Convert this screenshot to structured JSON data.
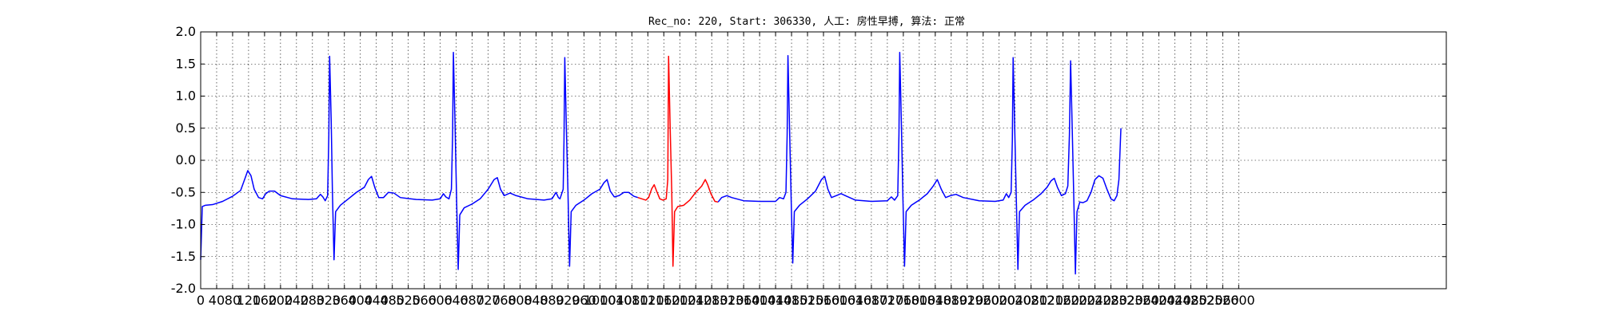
{
  "chart_data": {
    "type": "line",
    "title": "Rec_no: 220, Start: 306330, 人工: 房性早搏, 算法: 正常",
    "xlabel": "",
    "ylabel": "",
    "xlim": [
      0,
      3120
    ],
    "ylim": [
      -2.0,
      2.0
    ],
    "grid": true,
    "yticks": [
      "-2.0",
      "-1.5",
      "-1.0",
      "-0.5",
      "0.0",
      "0.5",
      "1.0",
      "1.5",
      "2.0"
    ],
    "xticks": [
      "0",
      "40",
      "80",
      "120",
      "160",
      "200",
      "240",
      "280",
      "320",
      "360",
      "400",
      "440",
      "480",
      "520",
      "560",
      "600",
      "640",
      "680",
      "720",
      "760",
      "800",
      "840",
      "880",
      "920",
      "960",
      "1000",
      "1040",
      "1080",
      "1120",
      "1160",
      "1200",
      "1240",
      "1280",
      "1320",
      "1360",
      "1400",
      "1440",
      "1480",
      "1520",
      "1560",
      "1600",
      "1640",
      "1680",
      "1720",
      "1760",
      "1800",
      "1840",
      "1880",
      "1920",
      "1960",
      "2000",
      "2040",
      "2080",
      "2120",
      "2160",
      "2200",
      "2240",
      "2280",
      "2320",
      "2360",
      "2400",
      "2440",
      "2480",
      "2520",
      "2560",
      "2600"
    ],
    "series": [
      {
        "color": "#0000ff",
        "points": [
          [
            0,
            -1.55
          ],
          [
            4,
            -0.72
          ],
          [
            12,
            -0.7
          ],
          [
            30,
            -0.69
          ],
          [
            55,
            -0.64
          ],
          [
            80,
            -0.56
          ],
          [
            100,
            -0.47
          ],
          [
            110,
            -0.3
          ],
          [
            118,
            -0.16
          ],
          [
            126,
            -0.24
          ],
          [
            134,
            -0.45
          ],
          [
            145,
            -0.58
          ],
          [
            155,
            -0.6
          ],
          [
            163,
            -0.52
          ],
          [
            172,
            -0.48
          ],
          [
            185,
            -0.48
          ],
          [
            200,
            -0.55
          ],
          [
            230,
            -0.6
          ],
          [
            270,
            -0.61
          ],
          [
            290,
            -0.6
          ],
          [
            300,
            -0.53
          ],
          [
            306,
            -0.57
          ],
          [
            312,
            -0.63
          ],
          [
            318,
            -0.55
          ],
          [
            321,
            0.4
          ],
          [
            323,
            1.62
          ],
          [
            327,
            0.6
          ],
          [
            330,
            -0.5
          ],
          [
            334,
            -1.55
          ],
          [
            338,
            -0.8
          ],
          [
            350,
            -0.7
          ],
          [
            370,
            -0.6
          ],
          [
            390,
            -0.5
          ],
          [
            410,
            -0.42
          ],
          [
            420,
            -0.3
          ],
          [
            428,
            -0.25
          ],
          [
            436,
            -0.42
          ],
          [
            446,
            -0.58
          ],
          [
            458,
            -0.58
          ],
          [
            470,
            -0.5
          ],
          [
            484,
            -0.51
          ],
          [
            500,
            -0.58
          ],
          [
            540,
            -0.61
          ],
          [
            580,
            -0.62
          ],
          [
            600,
            -0.6
          ],
          [
            608,
            -0.52
          ],
          [
            614,
            -0.57
          ],
          [
            622,
            -0.6
          ],
          [
            628,
            -0.45
          ],
          [
            631,
            0.4
          ],
          [
            633,
            1.68
          ],
          [
            637,
            0.6
          ],
          [
            641,
            -0.6
          ],
          [
            645,
            -1.7
          ],
          [
            649,
            -0.85
          ],
          [
            660,
            -0.74
          ],
          [
            680,
            -0.68
          ],
          [
            700,
            -0.6
          ],
          [
            720,
            -0.45
          ],
          [
            735,
            -0.3
          ],
          [
            743,
            -0.27
          ],
          [
            751,
            -0.45
          ],
          [
            760,
            -0.55
          ],
          [
            775,
            -0.51
          ],
          [
            790,
            -0.55
          ],
          [
            820,
            -0.6
          ],
          [
            860,
            -0.62
          ],
          [
            880,
            -0.6
          ],
          [
            890,
            -0.5
          ],
          [
            896,
            -0.58
          ],
          [
            900,
            -0.6
          ],
          [
            908,
            -0.45
          ],
          [
            910,
            0.3
          ],
          [
            912,
            1.6
          ],
          [
            916,
            0.5
          ],
          [
            920,
            -0.5
          ],
          [
            924,
            -1.65
          ],
          [
            928,
            -0.8
          ],
          [
            940,
            -0.7
          ],
          [
            960,
            -0.62
          ],
          [
            980,
            -0.52
          ],
          [
            1000,
            -0.45
          ],
          [
            1010,
            -0.35
          ],
          [
            1018,
            -0.3
          ],
          [
            1026,
            -0.48
          ],
          [
            1036,
            -0.57
          ],
          [
            1048,
            -0.55
          ],
          [
            1060,
            -0.5
          ],
          [
            1072,
            -0.5
          ],
          [
            1085,
            -0.56
          ],
          [
            1095,
            -0.58
          ]
        ]
      },
      {
        "color": "#ff0000",
        "points": [
          [
            1095,
            -0.58
          ],
          [
            1105,
            -0.6
          ],
          [
            1115,
            -0.62
          ],
          [
            1122,
            -0.58
          ],
          [
            1130,
            -0.44
          ],
          [
            1136,
            -0.38
          ],
          [
            1142,
            -0.48
          ],
          [
            1150,
            -0.6
          ],
          [
            1158,
            -0.62
          ],
          [
            1166,
            -0.6
          ],
          [
            1170,
            -0.3
          ],
          [
            1172,
            1.62
          ],
          [
            1176,
            0.5
          ],
          [
            1180,
            -0.5
          ],
          [
            1183,
            -1.65
          ],
          [
            1187,
            -0.8
          ],
          [
            1195,
            -0.72
          ],
          [
            1210,
            -0.7
          ],
          [
            1225,
            -0.62
          ],
          [
            1240,
            -0.5
          ],
          [
            1255,
            -0.4
          ],
          [
            1264,
            -0.3
          ],
          [
            1270,
            -0.38
          ],
          [
            1278,
            -0.52
          ],
          [
            1288,
            -0.64
          ],
          [
            1296,
            -0.65
          ]
        ]
      },
      {
        "color": "#0000ff",
        "points": [
          [
            1296,
            -0.65
          ],
          [
            1305,
            -0.58
          ],
          [
            1318,
            -0.55
          ],
          [
            1330,
            -0.58
          ],
          [
            1360,
            -0.63
          ],
          [
            1400,
            -0.64
          ],
          [
            1440,
            -0.64
          ],
          [
            1450,
            -0.58
          ],
          [
            1460,
            -0.6
          ],
          [
            1466,
            -0.5
          ],
          [
            1469,
            0.4
          ],
          [
            1471,
            1.63
          ],
          [
            1475,
            0.5
          ],
          [
            1479,
            -0.6
          ],
          [
            1483,
            -1.6
          ],
          [
            1487,
            -0.8
          ],
          [
            1500,
            -0.7
          ],
          [
            1520,
            -0.6
          ],
          [
            1540,
            -0.48
          ],
          [
            1555,
            -0.3
          ],
          [
            1563,
            -0.25
          ],
          [
            1571,
            -0.45
          ],
          [
            1580,
            -0.58
          ],
          [
            1592,
            -0.55
          ],
          [
            1604,
            -0.52
          ],
          [
            1618,
            -0.56
          ],
          [
            1640,
            -0.62
          ],
          [
            1680,
            -0.64
          ],
          [
            1720,
            -0.63
          ],
          [
            1730,
            -0.57
          ],
          [
            1738,
            -0.62
          ],
          [
            1746,
            -0.55
          ],
          [
            1749,
            0.4
          ],
          [
            1751,
            1.68
          ],
          [
            1755,
            0.6
          ],
          [
            1759,
            -0.6
          ],
          [
            1763,
            -1.65
          ],
          [
            1767,
            -0.8
          ],
          [
            1780,
            -0.7
          ],
          [
            1800,
            -0.62
          ],
          [
            1820,
            -0.52
          ],
          [
            1835,
            -0.4
          ],
          [
            1845,
            -0.3
          ],
          [
            1855,
            -0.45
          ],
          [
            1866,
            -0.58
          ],
          [
            1878,
            -0.55
          ],
          [
            1892,
            -0.53
          ],
          [
            1910,
            -0.58
          ],
          [
            1950,
            -0.63
          ],
          [
            1990,
            -0.64
          ],
          [
            2010,
            -0.62
          ],
          [
            2018,
            -0.52
          ],
          [
            2024,
            -0.58
          ],
          [
            2030,
            -0.5
          ],
          [
            2033,
            0.3
          ],
          [
            2035,
            1.6
          ],
          [
            2039,
            0.5
          ],
          [
            2043,
            -0.6
          ],
          [
            2047,
            -1.7
          ],
          [
            2051,
            -0.8
          ],
          [
            2065,
            -0.7
          ],
          [
            2085,
            -0.62
          ],
          [
            2105,
            -0.52
          ],
          [
            2120,
            -0.42
          ],
          [
            2130,
            -0.32
          ],
          [
            2138,
            -0.28
          ],
          [
            2146,
            -0.42
          ],
          [
            2156,
            -0.55
          ],
          [
            2166,
            -0.52
          ],
          [
            2172,
            -0.4
          ],
          [
            2176,
            0.4
          ],
          [
            2179,
            1.55
          ],
          [
            2183,
            0.5
          ],
          [
            2187,
            -0.6
          ],
          [
            2191,
            -1.77
          ],
          [
            2195,
            -0.8
          ],
          [
            2202,
            -0.65
          ],
          [
            2210,
            -0.66
          ],
          [
            2220,
            -0.63
          ],
          [
            2230,
            -0.5
          ],
          [
            2240,
            -0.3
          ],
          [
            2250,
            -0.24
          ],
          [
            2260,
            -0.28
          ],
          [
            2270,
            -0.45
          ],
          [
            2280,
            -0.6
          ],
          [
            2288,
            -0.63
          ],
          [
            2295,
            -0.55
          ],
          [
            2300,
            -0.3
          ],
          [
            2305,
            0.5
          ]
        ]
      }
    ]
  }
}
